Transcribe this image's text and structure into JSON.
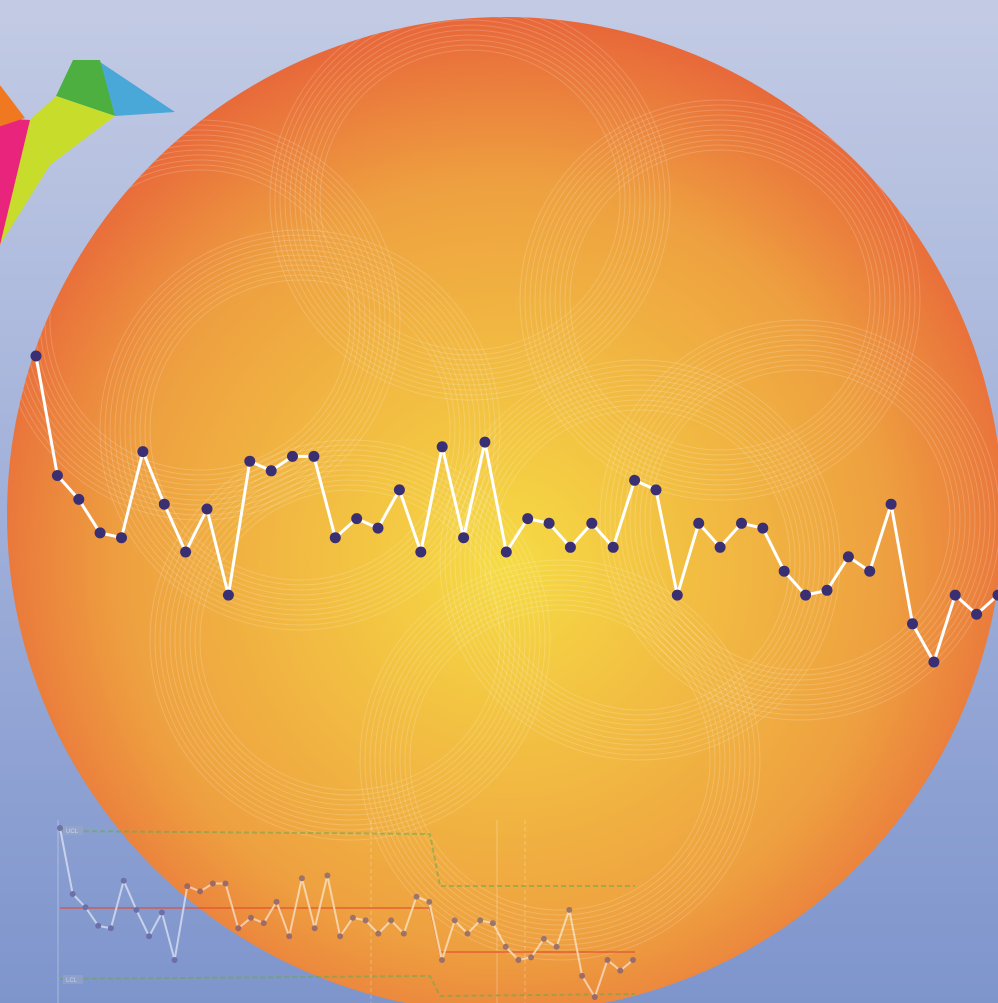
{
  "colors": {
    "background_top": "#c3cbe4",
    "background_bottom": "#7e95cc",
    "sun_center": "#f6db44",
    "sun_mid": "#f0a840",
    "sun_edge": "#e8673a",
    "main_line": "#ffffff",
    "main_marker": "#3a2f73",
    "control_green": "#6aa84f",
    "control_red": "#e04a2f",
    "bird_blue": "#4aa8d8",
    "bird_green": "#4caf3f",
    "bird_lime": "#c8dc2c",
    "bird_pink": "#e8247c",
    "bird_orange": "#f07820"
  },
  "illustration": {
    "logo": "origami-bird-icon",
    "main_series": [
      100,
      75,
      70,
      63,
      62,
      80,
      69,
      59,
      68,
      50,
      78,
      76,
      79,
      79,
      62,
      66,
      64,
      72,
      59,
      81,
      62,
      82,
      59,
      66,
      65,
      60,
      65,
      60,
      74,
      72,
      50,
      65,
      60,
      65,
      64,
      55,
      50,
      51,
      58,
      55,
      69,
      44,
      36,
      50,
      46,
      50
    ],
    "ghost_series": [
      100,
      75,
      70,
      63,
      62,
      80,
      69,
      59,
      68,
      50,
      78,
      76,
      79,
      79,
      62,
      66,
      64,
      72,
      59,
      81,
      62,
      82,
      59,
      66,
      65,
      60,
      65,
      60,
      74,
      72,
      50,
      65,
      60,
      65,
      64,
      55,
      50,
      51,
      58,
      55,
      69,
      44,
      36,
      50,
      46,
      50
    ],
    "ghost_labels": {
      "upper": "UCL",
      "lower": "LCL"
    }
  }
}
